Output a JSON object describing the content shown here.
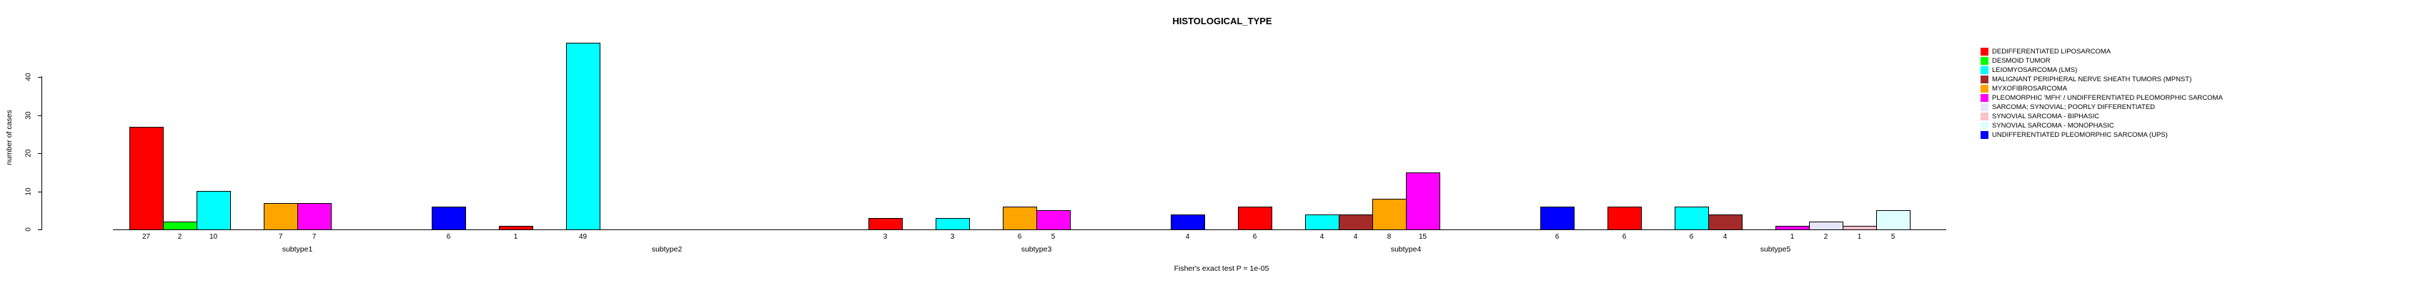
{
  "title": "HISTOLOGICAL_TYPE",
  "footnote": "Fisher's exact test P = 1e-05",
  "chart_data": {
    "type": "bar",
    "title": "HISTOLOGICAL_TYPE",
    "xlabel": "",
    "ylabel": "number of cases",
    "ylim": [
      0,
      40
    ],
    "yticks": [
      0,
      10,
      20,
      30,
      40
    ],
    "grid": false,
    "legend_position": "top-right",
    "bar_borders": "black",
    "value_labels": "shown under each nonzero bar",
    "categories": [
      "subtype1",
      "subtype2",
      "subtype3",
      "subtype4",
      "subtype5"
    ],
    "series": [
      {
        "name": "DEDIFFERENTIATED LIPOSARCOMA",
        "color": "#FF0000",
        "values": [
          27,
          1,
          3,
          6,
          6
        ]
      },
      {
        "name": "DESMOID TUMOR",
        "color": "#00FF00",
        "values": [
          2,
          0,
          0,
          0,
          0
        ]
      },
      {
        "name": "LEIOMYOSARCOMA (LMS)",
        "color": "#00FFFF",
        "values": [
          10,
          49,
          3,
          4,
          6
        ]
      },
      {
        "name": "MALIGNANT PERIPHERAL NERVE SHEATH TUMORS (MPNST)",
        "color": "#A52A2A",
        "values": [
          0,
          0,
          0,
          4,
          4
        ]
      },
      {
        "name": "MYXOFIBROSARCOMA",
        "color": "#FFA500",
        "values": [
          7,
          0,
          6,
          8,
          0
        ]
      },
      {
        "name": "PLEOMORPHIC 'MFH' / UNDIFFERENTIATED PLEOMORPHIC SARCOMA",
        "color": "#FF00FF",
        "values": [
          7,
          0,
          5,
          15,
          1
        ]
      },
      {
        "name": "SARCOMA; SYNOVIAL; POORLY DIFFERENTIATED",
        "color": "#E6E6FA",
        "values": [
          0,
          0,
          0,
          0,
          2
        ]
      },
      {
        "name": "SYNOVIAL SARCOMA - BIPHASIC",
        "color": "#FFC0CB",
        "values": [
          0,
          0,
          0,
          0,
          1
        ]
      },
      {
        "name": "SYNOVIAL SARCOMA - MONOPHASIC",
        "color": "#E0FFFF",
        "values": [
          0,
          0,
          0,
          0,
          5
        ]
      },
      {
        "name": "UNDIFFERENTIATED PLEOMORPHIC SARCOMA (UPS)",
        "color": "#0000FF",
        "values": [
          6,
          0,
          4,
          6,
          0
        ]
      }
    ]
  }
}
